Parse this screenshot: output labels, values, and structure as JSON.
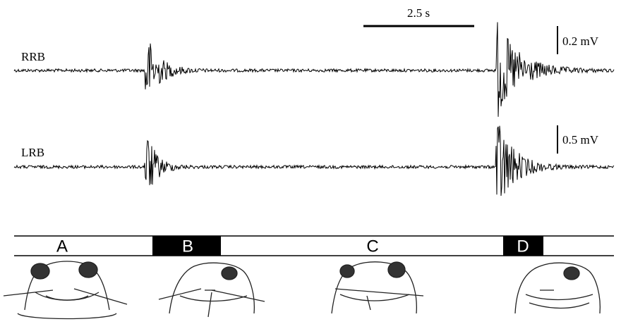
{
  "scale_bars": {
    "time": "2.5 s",
    "rrb": "0.2 mV",
    "lrb": "0.5 mV"
  },
  "traces": [
    {
      "label": "RRB"
    },
    {
      "label": "LRB"
    }
  ],
  "phases": [
    {
      "label": "A"
    },
    {
      "label": "B"
    },
    {
      "label": "C"
    },
    {
      "label": "D"
    }
  ]
}
